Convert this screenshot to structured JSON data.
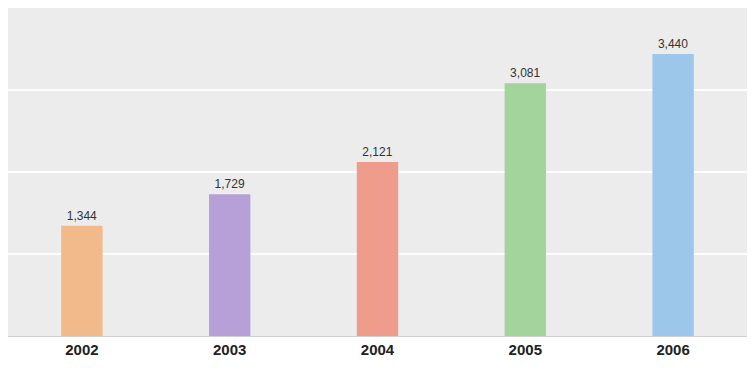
{
  "chart_data": {
    "type": "bar",
    "categories": [
      "2002",
      "2003",
      "2004",
      "2005",
      "2006"
    ],
    "values": [
      1344,
      1729,
      2121,
      3081,
      3440
    ],
    "value_labels": [
      "1,344",
      "1,729",
      "2,121",
      "3,081",
      "3,440"
    ],
    "colors": [
      "#f2b98a",
      "#b7a0d8",
      "#ef9c8c",
      "#a3d49b",
      "#9cc6ea"
    ],
    "ylim": [
      0,
      4000
    ],
    "yticks": [
      0,
      1000,
      2000,
      3000,
      4000
    ],
    "grid": true,
    "data_labels": true,
    "tick_labels": "x"
  }
}
